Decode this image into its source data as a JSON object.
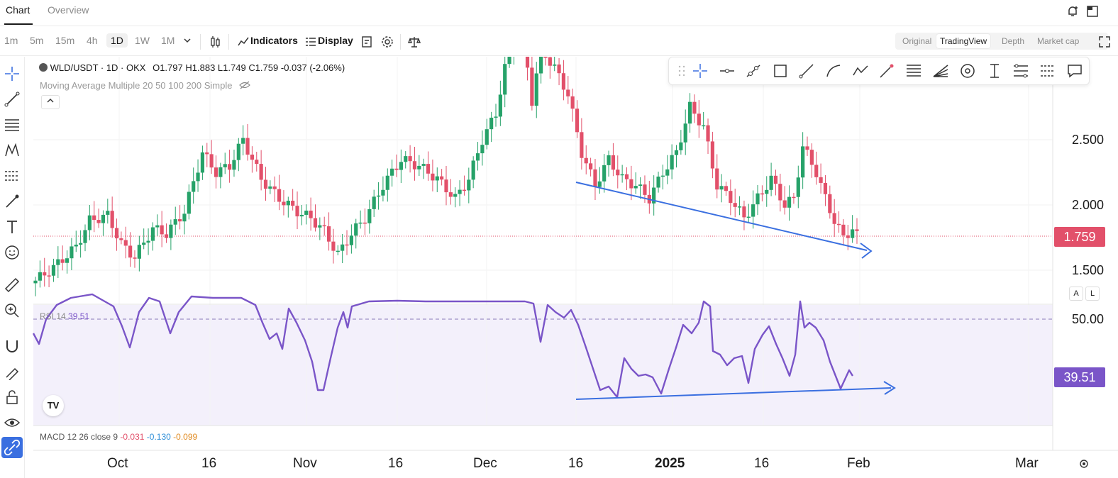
{
  "tabs": [
    "Chart",
    "Overview"
  ],
  "timeframes": [
    "1m",
    "5m",
    "15m",
    "4h",
    "1D",
    "1W",
    "1M"
  ],
  "selected_timeframe": "1D",
  "toolbar": {
    "indicators_label": "Indicators",
    "display_label": "Display"
  },
  "view_modes": [
    "Original",
    "TradingView",
    "Depth",
    "Market cap"
  ],
  "selected_view": "TradingView",
  "legend": {
    "symbol": "WLD/USDT · 1D · OKX",
    "open": "O1.797",
    "high": "H1.883",
    "low": "L1.749",
    "close": "C1.759",
    "change": "-0.037 (-2.06%)",
    "ma": "Moving Average Multiple 20 50 100 200 Simple"
  },
  "price_axis": [
    "2.500",
    "2.000",
    "1.500"
  ],
  "current_price": "1.759",
  "rsi": {
    "label": "RSI 14",
    "value": "39.51",
    "level": "50.00",
    "tag": "39.51"
  },
  "macd": {
    "label": "MACD 12 26 close 9",
    "v1": "-0.031",
    "v2": "-0.130",
    "v3": "-0.099"
  },
  "scale_buttons": [
    "A",
    "L"
  ],
  "x_axis": [
    "Oct",
    "16",
    "Nov",
    "16",
    "Dec",
    "16",
    "2025",
    "16",
    "Feb",
    "Mar"
  ],
  "colors": {
    "up": "#26a269",
    "down": "#e2506a",
    "rsi_line": "#7a55c8",
    "trend": "#3a6fe0",
    "rsi_bg": "#f3f0fb"
  },
  "chart_data": {
    "type": "candlestick",
    "symbol": "WLD/USDT",
    "interval": "1D",
    "ylim": [
      1.3,
      3.1
    ],
    "last_close": 1.759,
    "ohlc_visible_sample": [
      {
        "date": "2024-09-23",
        "o": 1.45,
        "h": 1.6,
        "l": 1.4,
        "c": 1.58
      },
      {
        "date": "2024-10-01",
        "o": 1.62,
        "h": 1.7,
        "l": 1.55,
        "c": 1.58
      },
      {
        "date": "2024-10-16",
        "o": 1.93,
        "h": 2.65,
        "l": 1.9,
        "c": 2.3
      },
      {
        "date": "2024-11-04",
        "o": 1.75,
        "h": 1.8,
        "l": 1.62,
        "c": 1.68
      },
      {
        "date": "2024-12-01",
        "o": 2.9,
        "h": 3.2,
        "l": 2.8,
        "c": 3.1
      },
      {
        "date": "2024-12-20",
        "o": 2.2,
        "h": 2.4,
        "l": 1.95,
        "c": 2.1
      },
      {
        "date": "2025-01-05",
        "o": 2.4,
        "h": 2.8,
        "l": 2.3,
        "c": 2.75
      },
      {
        "date": "2025-01-22",
        "o": 2.45,
        "h": 2.45,
        "l": 1.85,
        "c": 1.95
      },
      {
        "date": "2025-01-31",
        "o": 1.797,
        "h": 1.883,
        "l": 1.749,
        "c": 1.759
      }
    ]
  }
}
